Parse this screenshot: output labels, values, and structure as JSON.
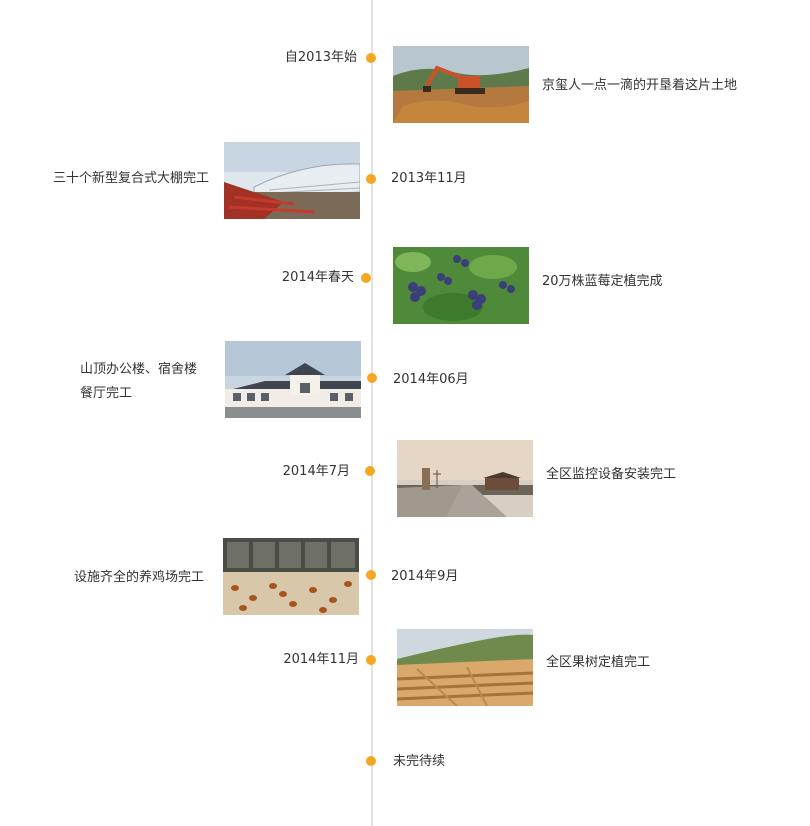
{
  "colors": {
    "accent": "#f5a623",
    "line": "#e3e3e3",
    "text": "#333333"
  },
  "events": [
    {
      "date": "自2013年始",
      "desc": "京玺人一点一滴的开垦着这片土地",
      "photo": "excavator-land-clearing"
    },
    {
      "date": "2013年11月",
      "desc": "三十个新型复合式大棚完工",
      "photo": "greenhouses"
    },
    {
      "date": "2014年春天",
      "desc": "20万株蓝莓定植完成",
      "photo": "blueberries"
    },
    {
      "date": "2014年06月",
      "desc_line1": "山顶办公楼、宿舍楼",
      "desc_line2": "餐厅完工",
      "photo": "office-building"
    },
    {
      "date": "2014年7月",
      "desc": "全区监控设备安装完工",
      "photo": "entrance-road"
    },
    {
      "date": "2014年9月",
      "desc": "设施齐全的养鸡场完工",
      "photo": "chicken-farm"
    },
    {
      "date": "2014年11月",
      "desc": "全区果树定植完工",
      "photo": "orchard-field"
    },
    {
      "date": "未完待续"
    }
  ]
}
